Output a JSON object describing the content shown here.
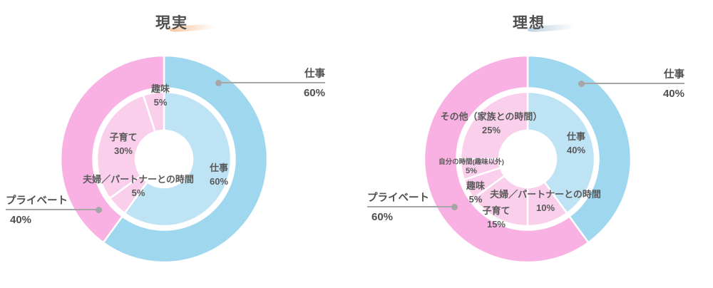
{
  "page": {
    "background": "#ffffff",
    "text_color": "#595959",
    "leader_line_color": "#a6a6a6"
  },
  "chart_data": [
    {
      "type": "pie",
      "variant": "nested_donut",
      "title": "現実",
      "title_accent_color": "#f3bc92",
      "legend": "none",
      "outer_ring": {
        "segments": [
          {
            "label": "仕事",
            "value": 60,
            "pct": "60%",
            "color": "#9fd7ef"
          },
          {
            "label": "プライベート",
            "value": 40,
            "pct": "40%",
            "color": "#f8b1e2"
          }
        ]
      },
      "inner_ring": {
        "segments": [
          {
            "label": "仕事",
            "value": 60,
            "pct": "60%",
            "color": "#bde3f4"
          },
          {
            "label": "夫婦／パートナーとの時間",
            "value": 5,
            "pct": "5%",
            "color": "#facfeb"
          },
          {
            "label": "子育て",
            "value": 30,
            "pct": "30%",
            "color": "#facfeb"
          },
          {
            "label": "趣味",
            "value": 5,
            "pct": "5%",
            "color": "#facfeb"
          }
        ]
      }
    },
    {
      "type": "pie",
      "variant": "nested_donut",
      "title": "理想",
      "title_accent_color": "#aec9da",
      "legend": "none",
      "outer_ring": {
        "segments": [
          {
            "label": "仕事",
            "value": 40,
            "pct": "40%",
            "color": "#9fd7ef"
          },
          {
            "label": "プライベート",
            "value": 60,
            "pct": "60%",
            "color": "#f8b1e2"
          }
        ]
      },
      "inner_ring": {
        "segments": [
          {
            "label": "仕事",
            "value": 40,
            "pct": "40%",
            "color": "#bde3f4"
          },
          {
            "label": "夫婦／パートナーとの時間",
            "value": 10,
            "pct": "10%",
            "color": "#facfeb"
          },
          {
            "label": "子育て",
            "value": 15,
            "pct": "15%",
            "color": "#facfeb"
          },
          {
            "label": "趣味",
            "value": 5,
            "pct": "5%",
            "color": "#facfeb"
          },
          {
            "label": "自分の時間(趣味以外)",
            "value": 5,
            "pct": "5%",
            "color": "#facfeb"
          },
          {
            "label": "その他（家族との時間）",
            "value": 25,
            "pct": "25%",
            "color": "#facfeb"
          }
        ]
      }
    }
  ]
}
